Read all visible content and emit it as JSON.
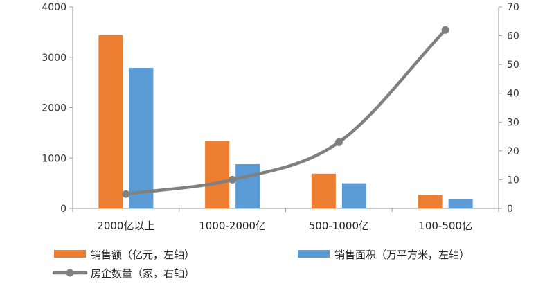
{
  "chart_data": {
    "type": "bar+line",
    "categories": [
      "2000亿以上",
      "1000-2000亿",
      "500-1000亿",
      "100-500亿"
    ],
    "series": [
      {
        "name": "销售额（亿元，左轴）",
        "type": "bar",
        "axis": "left",
        "color": "#ED7D31",
        "values": [
          3440,
          1340,
          690,
          270
        ]
      },
      {
        "name": "销售面积（万平方米，左轴）",
        "type": "bar",
        "axis": "left",
        "color": "#5B9BD5",
        "values": [
          2790,
          880,
          500,
          180
        ]
      },
      {
        "name": "房企数量（家，右轴）",
        "type": "line",
        "axis": "right",
        "color": "#808080",
        "smooth": true,
        "values": [
          5,
          10,
          23,
          62
        ]
      }
    ],
    "y_left": {
      "ticks": [
        "0",
        "1000",
        "2000",
        "3000",
        "4000"
      ],
      "range": [
        0,
        4000
      ]
    },
    "y_right": {
      "ticks": [
        "0",
        "10",
        "20",
        "30",
        "40",
        "50",
        "60",
        "70"
      ],
      "range": [
        0,
        70
      ]
    },
    "grid": false,
    "legend_position": "bottom"
  }
}
